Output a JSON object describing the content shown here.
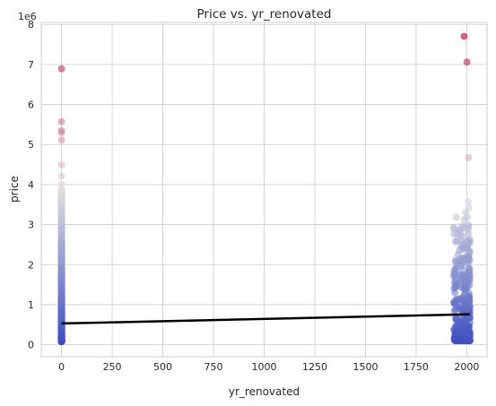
{
  "chart_data": {
    "type": "scatter",
    "title": "Price vs. yr_renovated",
    "xlabel": "yr_renovated",
    "ylabel": "price",
    "y_multiplier_label": "1e6",
    "xlim": [
      -100,
      2100
    ],
    "ylim": [
      -0.3,
      8.05
    ],
    "x_ticks": [
      0,
      250,
      500,
      750,
      1000,
      1250,
      1500,
      1750,
      2000
    ],
    "y_ticks": [
      0,
      1,
      2,
      3,
      4,
      5,
      6,
      7,
      8
    ],
    "y_unit_scale": 1000000,
    "grid": true,
    "colormap": "coolwarm",
    "notable_points": [
      {
        "x": 0,
        "y": 6.89
      },
      {
        "x": 0,
        "y": 5.57
      },
      {
        "x": 0,
        "y": 5.35
      },
      {
        "x": 0,
        "y": 5.3
      },
      {
        "x": 0,
        "y": 5.11
      },
      {
        "x": 0,
        "y": 4.49
      },
      {
        "x": 0,
        "y": 4.21
      },
      {
        "x": 0,
        "y": 4.0
      },
      {
        "x": 1987,
        "y": 7.7
      },
      {
        "x": 2001,
        "y": 7.06
      },
      {
        "x": 2009,
        "y": 4.67
      },
      {
        "x": 2007,
        "y": 3.58
      },
      {
        "x": 2010,
        "y": 3.42
      },
      {
        "x": 1994,
        "y": 3.3
      },
      {
        "x": 2003,
        "y": 3.18
      }
    ],
    "cluster_zero": {
      "x": 0,
      "y_min": 0.08,
      "y_max": 3.9
    },
    "cluster_recent": {
      "x_min": 1934,
      "x_max": 2015,
      "y_min": 0.1,
      "y_max": 3.2
    },
    "regression_line": {
      "x": [
        0,
        2015
      ],
      "y": [
        0.53,
        0.76
      ]
    }
  }
}
